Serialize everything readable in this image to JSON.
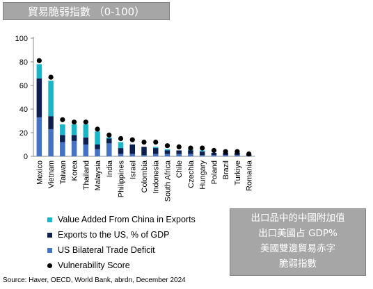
{
  "title": "貿易脆弱指數 （0-100）",
  "chart_data": {
    "type": "bar",
    "stacked": true,
    "categories": [
      "Mexico",
      "Vietnam",
      "Taiwan",
      "Korea",
      "Thailand",
      "Malaysia",
      "India",
      "Philippines",
      "Israel",
      "Colombia",
      "Indonesia",
      "South Africa",
      "Chile",
      "Czechia",
      "Hungary",
      "Poland",
      "Brazil",
      "Turkiye",
      "Romania"
    ],
    "series": [
      {
        "name": "US Bilateral Trade Deficit",
        "color": "#4472c4",
        "values": [
          33,
          23,
          12,
          13,
          10,
          6,
          11,
          2,
          2,
          1,
          2,
          2,
          2,
          2,
          1,
          1,
          1,
          1,
          0.5
        ]
      },
      {
        "name": "Exports to the US, % of GDP",
        "color": "#0d1f4f",
        "values": [
          33,
          11,
          6,
          5,
          6,
          4,
          4,
          5,
          8,
          7,
          5,
          3,
          3,
          3,
          3,
          2,
          2,
          2,
          1
        ]
      },
      {
        "name": "Value Added From China in Exports",
        "color": "#1ab5c9",
        "values": [
          12,
          30,
          9,
          9,
          11,
          11,
          1,
          5,
          0,
          0,
          1,
          1,
          0,
          1,
          1,
          0,
          0,
          0,
          0
        ]
      }
    ],
    "markers": {
      "name": "Vulnerability Score",
      "color": "#000000",
      "values": [
        81,
        67,
        31,
        29,
        29,
        23,
        18,
        15,
        14,
        12,
        12,
        9,
        8,
        7,
        7,
        5,
        4,
        4,
        2
      ]
    },
    "ylim": [
      0,
      100
    ],
    "yticks": [
      0,
      20,
      40,
      60,
      80,
      100
    ],
    "grid": false,
    "legend_order": [
      "Value Added From China in Exports",
      "Exports to the US, % of GDP",
      "US Bilateral Trade Deficit",
      "Vulnerability Score"
    ],
    "legend_position": "bottom-left"
  },
  "note": {
    "lines": [
      "出口品中的中國附加值",
      "出口美國占 GDP%",
      "美國雙邊貿易赤字",
      "脆弱指數"
    ]
  },
  "source": "Source: Haver, OECD, World Bank, abrdn, December 2024"
}
